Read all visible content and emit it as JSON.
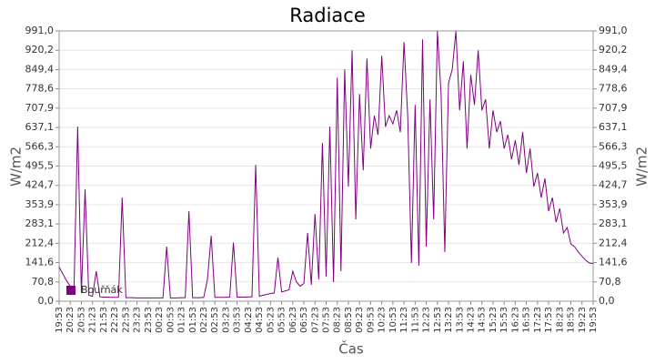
{
  "chart_data": {
    "type": "line",
    "title": "Radiace",
    "x_label": "Čas",
    "y_label": "W/m2",
    "categories": [
      "19:53",
      null,
      null,
      "20:23",
      null,
      null,
      "20:53",
      null,
      null,
      "21:23",
      null,
      null,
      "21:53",
      null,
      null,
      "22:23",
      null,
      null,
      "22:53",
      null,
      null,
      "23:23",
      null,
      null,
      "23:53",
      null,
      null,
      "00:23",
      null,
      null,
      "00:53",
      null,
      null,
      "01:23",
      null,
      null,
      "01:53",
      null,
      null,
      "02:23",
      null,
      null,
      "02:53",
      null,
      null,
      "03:23",
      null,
      null,
      "03:53",
      null,
      null,
      "04:23",
      null,
      null,
      "04:53",
      null,
      null,
      "05:23",
      null,
      null,
      "05:53",
      null,
      null,
      "06:23",
      null,
      null,
      "06:53",
      null,
      null,
      "07:23",
      null,
      null,
      "07:53",
      null,
      null,
      "08:23",
      null,
      null,
      "08:53",
      null,
      null,
      "09:23",
      null,
      null,
      "09:53",
      null,
      null,
      "10:23",
      null,
      null,
      "10:53",
      null,
      null,
      "11:23",
      null,
      null,
      "11:53",
      null,
      null,
      "12:23",
      null,
      null,
      "12:53",
      null,
      null,
      "13:23",
      null,
      null,
      "13:53",
      null,
      null,
      "14:23",
      null,
      null,
      "14:53",
      null,
      null,
      "15:23",
      null,
      null,
      "15:53",
      null,
      null,
      "16:23",
      null,
      null,
      "16:53",
      null,
      null,
      "17:23",
      null,
      null,
      "17:53",
      null,
      null,
      "18:23",
      null,
      null,
      "18:53",
      null,
      null,
      "19:23",
      null,
      null,
      "19:53"
    ],
    "series": [
      {
        "name": "Bouřňák",
        "color": "#800080",
        "values": [
          125,
          100,
          75,
          55,
          40,
          640,
          30,
          410,
          22,
          18,
          110,
          16,
          15,
          15,
          14,
          14,
          14,
          380,
          13,
          13,
          13,
          12,
          12,
          12,
          12,
          12,
          12,
          12,
          12,
          200,
          12,
          12,
          12,
          13,
          13,
          330,
          13,
          13,
          13,
          14,
          80,
          240,
          14,
          14,
          14,
          14,
          15,
          215,
          15,
          15,
          15,
          16,
          16,
          500,
          18,
          22,
          25,
          28,
          30,
          160,
          34,
          38,
          42,
          110,
          70,
          55,
          65,
          250,
          60,
          320,
          80,
          580,
          90,
          640,
          70,
          820,
          110,
          850,
          420,
          920,
          300,
          760,
          480,
          890,
          560,
          680,
          610,
          900,
          640,
          680,
          650,
          700,
          620,
          950,
          680,
          140,
          720,
          130,
          960,
          200,
          740,
          300,
          990,
          760,
          180,
          800,
          850,
          990,
          700,
          880,
          560,
          830,
          720,
          920,
          700,
          740,
          560,
          700,
          620,
          660,
          560,
          610,
          520,
          590,
          500,
          620,
          470,
          560,
          420,
          470,
          380,
          450,
          330,
          380,
          290,
          340,
          250,
          270,
          210,
          200,
          180,
          165,
          150,
          140,
          138
        ]
      }
    ],
    "ylim": [
      0,
      991
    ],
    "yticks": [
      {
        "value": 0,
        "label": "0,0"
      },
      {
        "value": 70.8,
        "label": "70,8"
      },
      {
        "value": 141.6,
        "label": "141,6"
      },
      {
        "value": 212.4,
        "label": "212,4"
      },
      {
        "value": 283.1,
        "label": "283,1"
      },
      {
        "value": 353.9,
        "label": "353,9"
      },
      {
        "value": 424.7,
        "label": "424,7"
      },
      {
        "value": 495.5,
        "label": "495,5"
      },
      {
        "value": 566.3,
        "label": "566,3"
      },
      {
        "value": 637.1,
        "label": "637,1"
      },
      {
        "value": 707.9,
        "label": "707,9"
      },
      {
        "value": 778.6,
        "label": "778,6"
      },
      {
        "value": 849.4,
        "label": "849,4"
      },
      {
        "value": 920.2,
        "label": "920,2"
      },
      {
        "value": 991,
        "label": "991,0"
      }
    ],
    "grid": true,
    "legend": "bottom-left"
  }
}
